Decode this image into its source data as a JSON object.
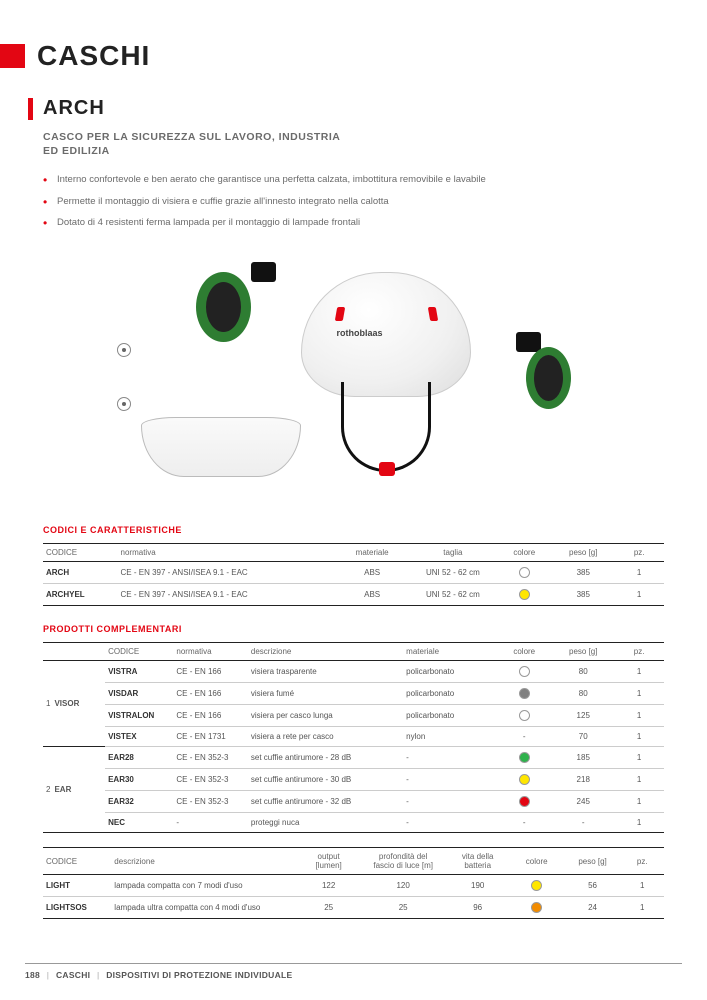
{
  "section_title": "CASCHI",
  "product_name": "ARCH",
  "subtitle_line1": "CASCO PER LA SICUREZZA SUL LAVORO, INDUSTRIA",
  "subtitle_line2": "ED EDILIZIA",
  "bullets": [
    "Interno confortevole e ben aerato che garantisce una perfetta calzata, imbottitura removibile e lavabile",
    "Permette il montaggio di visiera e cuffie grazie all'innesto integrato nella calotta",
    "Dotato di 4 resistenti ferma lampada per il montaggio di lampade frontali"
  ],
  "colors": {
    "accent": "#e30613",
    "white": "#ffffff",
    "yellow": "#ffe600",
    "grey": "#808080",
    "green": "#2fb24c",
    "red": "#e30613",
    "orange": "#f28c00"
  },
  "table1": {
    "heading": "CODICI E CARATTERISTICHE",
    "headers": {
      "c0": "CODICE",
      "c1": "normativa",
      "c2": "materiale",
      "c3": "taglia",
      "c4": "colore",
      "c5": "peso [g]",
      "c6": "pz."
    },
    "rows": [
      {
        "codice": "ARCH",
        "normativa": "CE - EN 397 - ANSI/ISEA 9.1 - EAC",
        "materiale": "ABS",
        "taglia": "UNI 52 - 62 cm",
        "colore": "#ffffff",
        "peso": "385",
        "pz": "1"
      },
      {
        "codice": "ARCHYEL",
        "normativa": "CE - EN 397 - ANSI/ISEA 9.1 - EAC",
        "materiale": "ABS",
        "taglia": "UNI 52 - 62 cm",
        "colore": "#ffe600",
        "peso": "385",
        "pz": "1"
      }
    ]
  },
  "table2": {
    "heading": "PRODOTTI COMPLEMENTARI",
    "headers": {
      "g": "",
      "c0": "CODICE",
      "c1": "normativa",
      "c2": "descrizione",
      "c3": "materiale",
      "c4": "colore",
      "c5": "peso [g]",
      "c6": "pz."
    },
    "group1": {
      "num": "1",
      "label": "VISOR"
    },
    "group2": {
      "num": "2",
      "label": "EAR"
    },
    "rows": [
      {
        "codice": "VISTRA",
        "norm": "CE - EN 166",
        "desc": "visiera trasparente",
        "mat": "policarbonato",
        "colore": "#ffffff",
        "peso": "80",
        "pz": "1"
      },
      {
        "codice": "VISDAR",
        "norm": "CE - EN 166",
        "desc": "visiera fumé",
        "mat": "policarbonato",
        "colore": "#808080",
        "peso": "80",
        "pz": "1"
      },
      {
        "codice": "VISTRALON",
        "norm": "CE - EN 166",
        "desc": "visiera per casco lunga",
        "mat": "policarbonato",
        "colore": "#ffffff",
        "peso": "125",
        "pz": "1"
      },
      {
        "codice": "VISTEX",
        "norm": "CE - EN 1731",
        "desc": "visiera a rete per casco",
        "mat": "nylon",
        "colore": null,
        "peso": "70",
        "pz": "1"
      },
      {
        "codice": "EAR28",
        "norm": "CE - EN 352-3",
        "desc": "set cuffie antirumore - 28 dB",
        "mat": "-",
        "colore": "#2fb24c",
        "peso": "185",
        "pz": "1"
      },
      {
        "codice": "EAR30",
        "norm": "CE - EN 352-3",
        "desc": "set cuffie antirumore - 30 dB",
        "mat": "-",
        "colore": "#ffe600",
        "peso": "218",
        "pz": "1"
      },
      {
        "codice": "EAR32",
        "norm": "CE - EN 352-3",
        "desc": "set cuffie antirumore - 32 dB",
        "mat": "-",
        "colore": "#e30613",
        "peso": "245",
        "pz": "1"
      },
      {
        "codice": "NEC",
        "norm": "-",
        "desc": "proteggi nuca",
        "mat": "-",
        "colore": null,
        "peso": "-",
        "pz": "1"
      }
    ]
  },
  "table3": {
    "headers": {
      "c0": "CODICE",
      "c1": "descrizione",
      "c2a": "output",
      "c2b": "[lumen]",
      "c3a": "profondità del",
      "c3b": "fascio di luce [m]",
      "c4a": "vita della",
      "c4b": "batteria",
      "c5": "colore",
      "c6": "peso [g]",
      "c7": "pz."
    },
    "rows": [
      {
        "codice": "LIGHT",
        "desc": "lampada compatta con 7 modi d'uso",
        "out": "122",
        "prof": "120",
        "batt": "190",
        "colore": "#ffe600",
        "peso": "56",
        "pz": "1"
      },
      {
        "codice": "LIGHTSOS",
        "desc": "lampada ultra compatta con 4 modi d'uso",
        "out": "25",
        "prof": "25",
        "batt": "96",
        "colore": "#f28c00",
        "peso": "24",
        "pz": "1"
      }
    ]
  },
  "footer": {
    "page": "188",
    "path1": "CASCHI",
    "path2": "DISPOSITIVI DI PROTEZIONE INDIVIDUALE"
  }
}
